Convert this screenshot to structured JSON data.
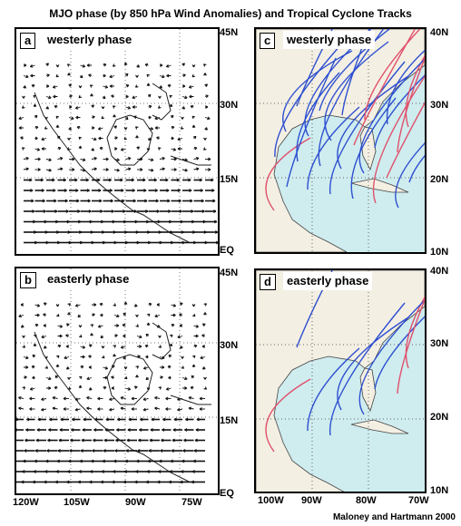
{
  "title": "MJO phase (by 850 hPa Wind Anomalies) and Tropical Cyclone Tracks",
  "panels": {
    "a": {
      "letter": "a",
      "phase": "westerly phase"
    },
    "b": {
      "letter": "b",
      "phase": "easterly phase"
    },
    "c": {
      "letter": "c",
      "phase": "westerly phase"
    },
    "d": {
      "letter": "d",
      "phase": "easterly phase"
    }
  },
  "left_lat_labels": {
    "top": [
      "45N",
      "30N",
      "15N",
      "EQ"
    ],
    "bottom": [
      "45N",
      "30N",
      "15N",
      "EQ"
    ]
  },
  "right_lat_labels": {
    "top": [
      "40N",
      "30N",
      "20N",
      "10N"
    ],
    "bottom": [
      "40N",
      "30N",
      "20N",
      "10N"
    ]
  },
  "left_lon_labels": [
    "120W",
    "105W",
    "90W",
    "75W"
  ],
  "right_lon_labels": [
    "100W",
    "90W",
    "80W",
    "70W"
  ],
  "credit": "Maloney and Hartmann 2000",
  "colors": {
    "ocean": "#cfecef",
    "land": "#f3efe3",
    "track_blue": "#2d4fd0",
    "track_red": "#e0506a"
  }
}
